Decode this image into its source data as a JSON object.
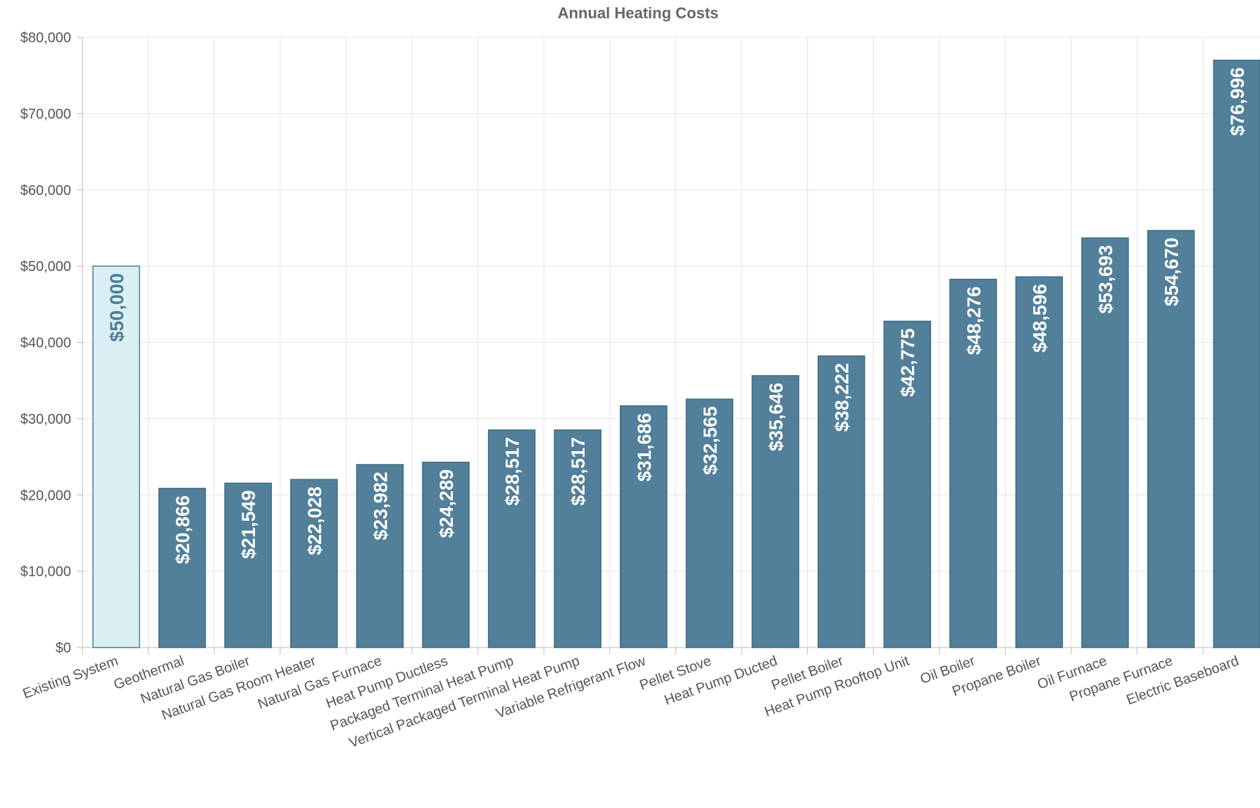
{
  "chart_data": {
    "type": "bar",
    "title": "Annual Heating Costs",
    "xlabel": "",
    "ylabel": "",
    "ylim": [
      0,
      80000
    ],
    "y_ticks": [
      0,
      10000,
      20000,
      30000,
      40000,
      50000,
      60000,
      70000,
      80000
    ],
    "y_tick_labels": [
      "$0",
      "$10,000",
      "$20,000",
      "$30,000",
      "$40,000",
      "$50,000",
      "$60,000",
      "$70,000",
      "$80,000"
    ],
    "grid": true,
    "legend": "none",
    "categories": [
      "Existing System",
      "Geothermal",
      "Natural Gas Boiler",
      "Natural Gas Room Heater",
      "Natural Gas Furnace",
      "Heat Pump Ductless",
      "Packaged Terminal Heat Pump",
      "Vertical Packaged Terminal Heat Pump",
      "Variable Refrigerant Flow",
      "Pellet Stove",
      "Heat Pump Ducted",
      "Pellet Boiler",
      "Heat Pump Rooftop Unit",
      "Oil Boiler",
      "Propane Boiler",
      "Oil Furnace",
      "Propane Furnace",
      "Electric Baseboard"
    ],
    "values": [
      50000,
      20866,
      21549,
      22028,
      23982,
      24289,
      28517,
      28517,
      31686,
      32565,
      35646,
      38222,
      42775,
      48276,
      48596,
      53693,
      54670,
      76996
    ],
    "data_labels": [
      "$50,000",
      "$20,866",
      "$21,549",
      "$22,028",
      "$23,982",
      "$24,289",
      "$28,517",
      "$28,517",
      "$31,686",
      "$32,565",
      "$35,646",
      "$38,222",
      "$42,775",
      "$48,276",
      "$48,596",
      "$53,693",
      "$54,670",
      "$76,996"
    ],
    "colors": {
      "existing_fill": "#daeff3",
      "existing_stroke": "#4e7c96",
      "existing_label": "#4e7c96",
      "bar_fill": "#527f99",
      "bar_stroke": "#3f6a84",
      "bar_label": "#ffffff",
      "grid": "#e3e3e3",
      "axis": "#bbbbbb"
    }
  }
}
